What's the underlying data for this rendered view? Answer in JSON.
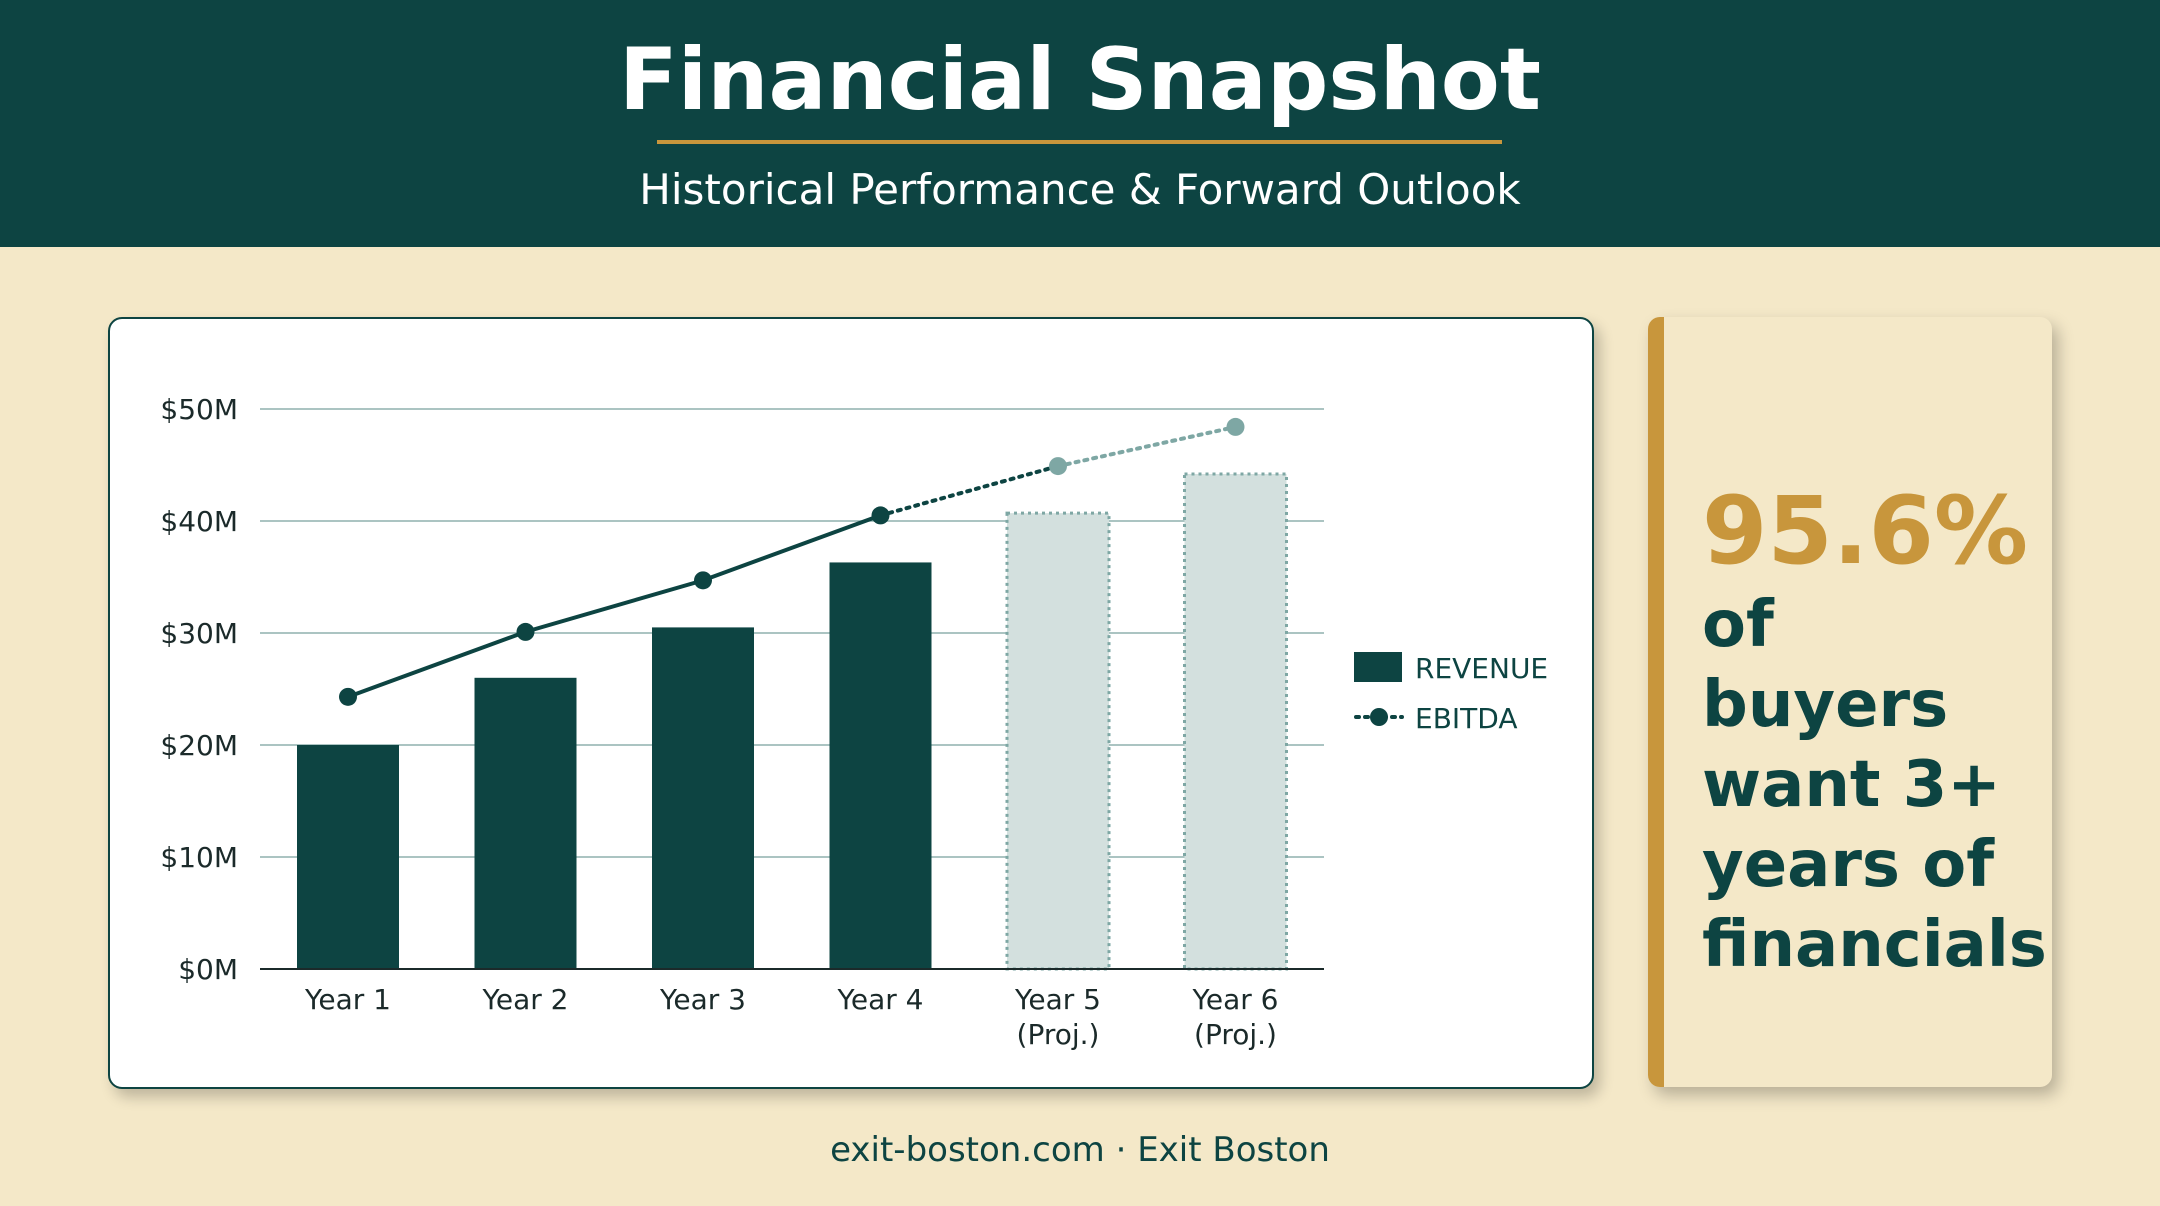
{
  "header": {
    "title": "Financial Snapshot",
    "subtitle": "Historical Performance & Forward Outlook"
  },
  "colors": {
    "primary": "#0d4442",
    "accent": "#c8963c",
    "projected_fill": "#d3e0de",
    "projected_stroke": "#7ea7a4",
    "background": "#f4e8c8"
  },
  "chart_data": {
    "type": "bar",
    "categories": [
      [
        "Year 1"
      ],
      [
        "Year 2"
      ],
      [
        "Year 3"
      ],
      [
        "Year 4"
      ],
      [
        "Year 5",
        "(Proj.)"
      ],
      [
        "Year 6",
        "(Proj.)"
      ]
    ],
    "series": [
      {
        "name": "REVENUE",
        "type": "bar",
        "values": [
          20,
          26,
          30.5,
          36.3,
          40.7,
          44.2
        ]
      },
      {
        "name": "EBITDA",
        "type": "line",
        "values": [
          24.3,
          30.1,
          34.7,
          40.5,
          44.9,
          48.4
        ]
      }
    ],
    "projected_from_index": 4,
    "ylim": [
      0,
      50
    ],
    "yticks": [
      0,
      10,
      20,
      30,
      40,
      50
    ],
    "ytick_labels": [
      "$0M",
      "$10M",
      "$20M",
      "$30M",
      "$40M",
      "$50M"
    ],
    "grid": true,
    "legend_position": "right"
  },
  "stat": {
    "value": "95.6%",
    "lines": [
      "of buyers",
      "want 3+",
      "years of",
      "financials"
    ]
  },
  "footer": {
    "text": "exit-boston.com · Exit Boston"
  }
}
